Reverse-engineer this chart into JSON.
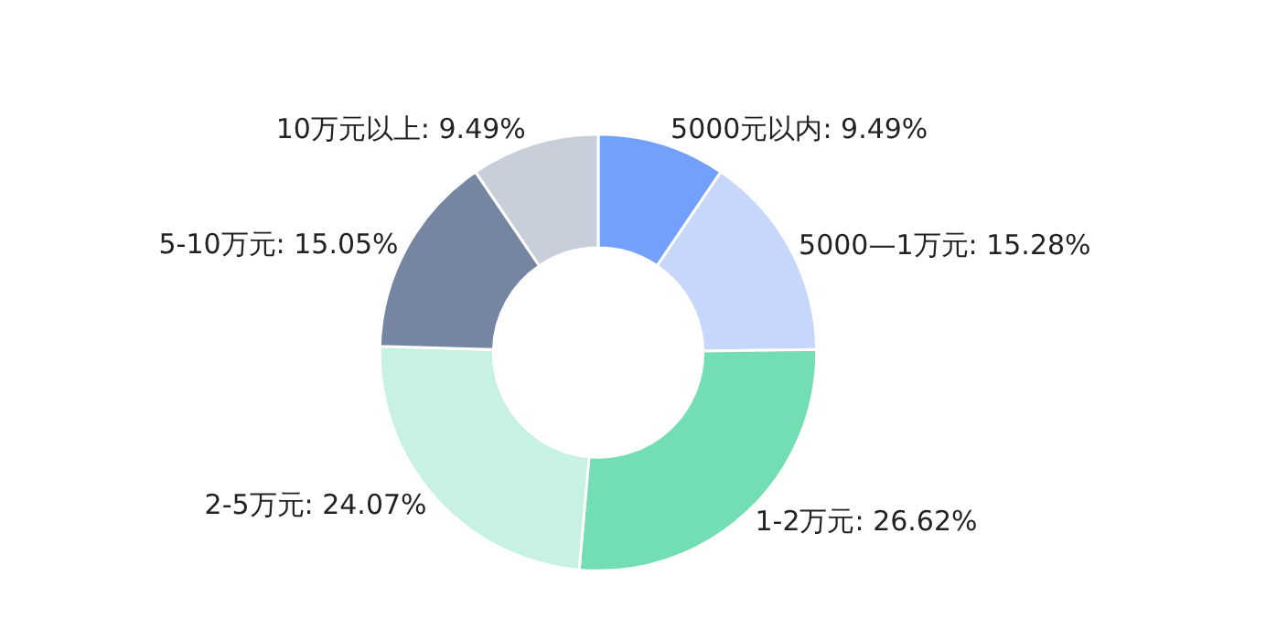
{
  "chart_data": {
    "type": "donut",
    "categories": [
      "5000元以内",
      "5000—1万元",
      "1-2万元",
      "2-5万元",
      "5-10万元",
      "10万元以上"
    ],
    "values": [
      9.49,
      15.28,
      26.62,
      24.07,
      15.05,
      9.49
    ],
    "value_labels": [
      "9.49%",
      "15.28%",
      "26.62%",
      "24.07%",
      "15.05%",
      "9.49%"
    ],
    "colors": [
      "#73a0fa",
      "#c6d7fb",
      "#73deb3",
      "#c7f1e0",
      "#7585a2",
      "#c8cfdb"
    ],
    "legend": false
  }
}
